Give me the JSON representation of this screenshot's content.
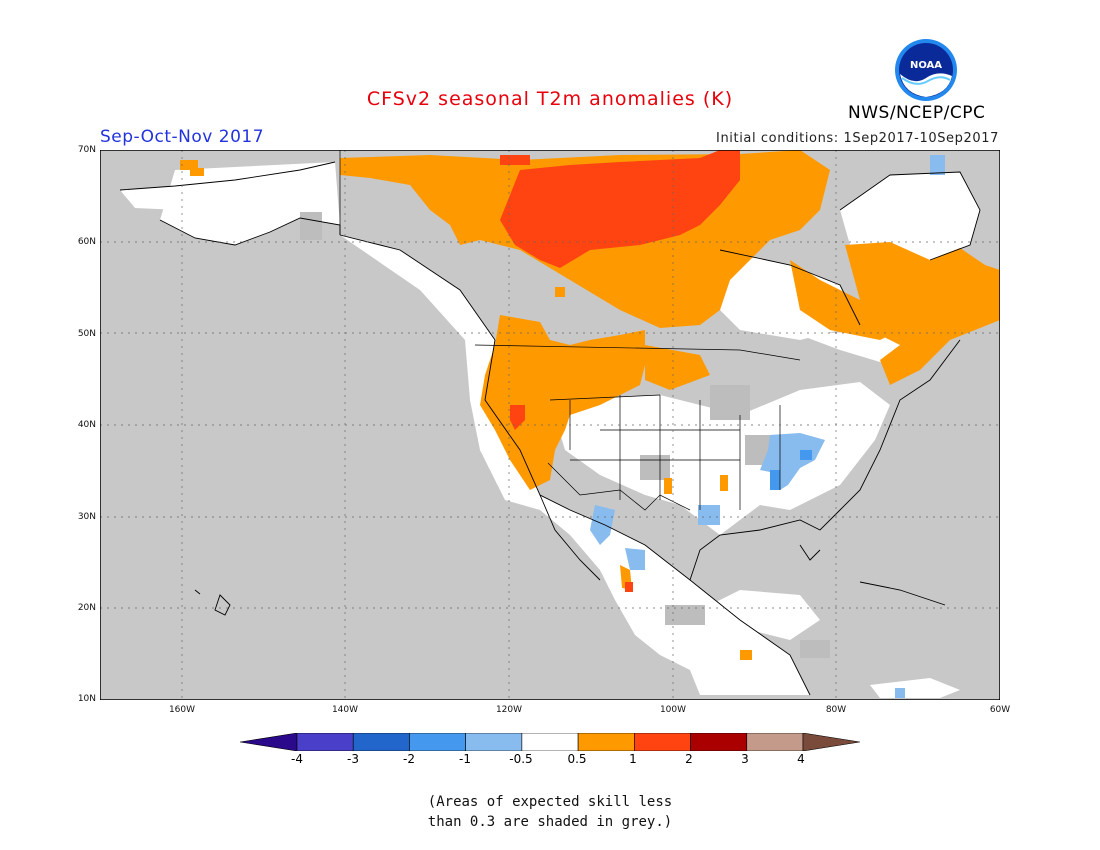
{
  "header": {
    "title": "CFSv2 seasonal T2m anomalies (K)",
    "season": "Sep-Oct-Nov 2017",
    "org": "NWS/NCEP/CPC",
    "init": "Initial conditions: 1Sep2017-10Sep2017",
    "logo_text": "NOAA"
  },
  "map": {
    "lat_labels": [
      "70N",
      "60N",
      "50N",
      "40N",
      "30N",
      "20N",
      "10N"
    ],
    "lon_labels": [
      "160W",
      "140W",
      "120W",
      "100W",
      "80W",
      "60W"
    ],
    "lon_range": [
      -170,
      -60
    ],
    "lat_range": [
      10,
      70
    ]
  },
  "legend": {
    "tick_labels": [
      "-4",
      "-3",
      "-2",
      "-1",
      "-0.5",
      "0.5",
      "1",
      "2",
      "3",
      "4"
    ],
    "colors": [
      "#2a0a8a",
      "#4a3fc8",
      "#2266cc",
      "#4499ee",
      "#88bbee",
      "#ffffff",
      "#ff9900",
      "#ff4411",
      "#aa0000",
      "#c49a8a",
      "#7a4a3a"
    ]
  },
  "note": {
    "line1": "(Areas of expected skill less",
    "line2": "than 0.3 are shaded in grey.)"
  }
}
